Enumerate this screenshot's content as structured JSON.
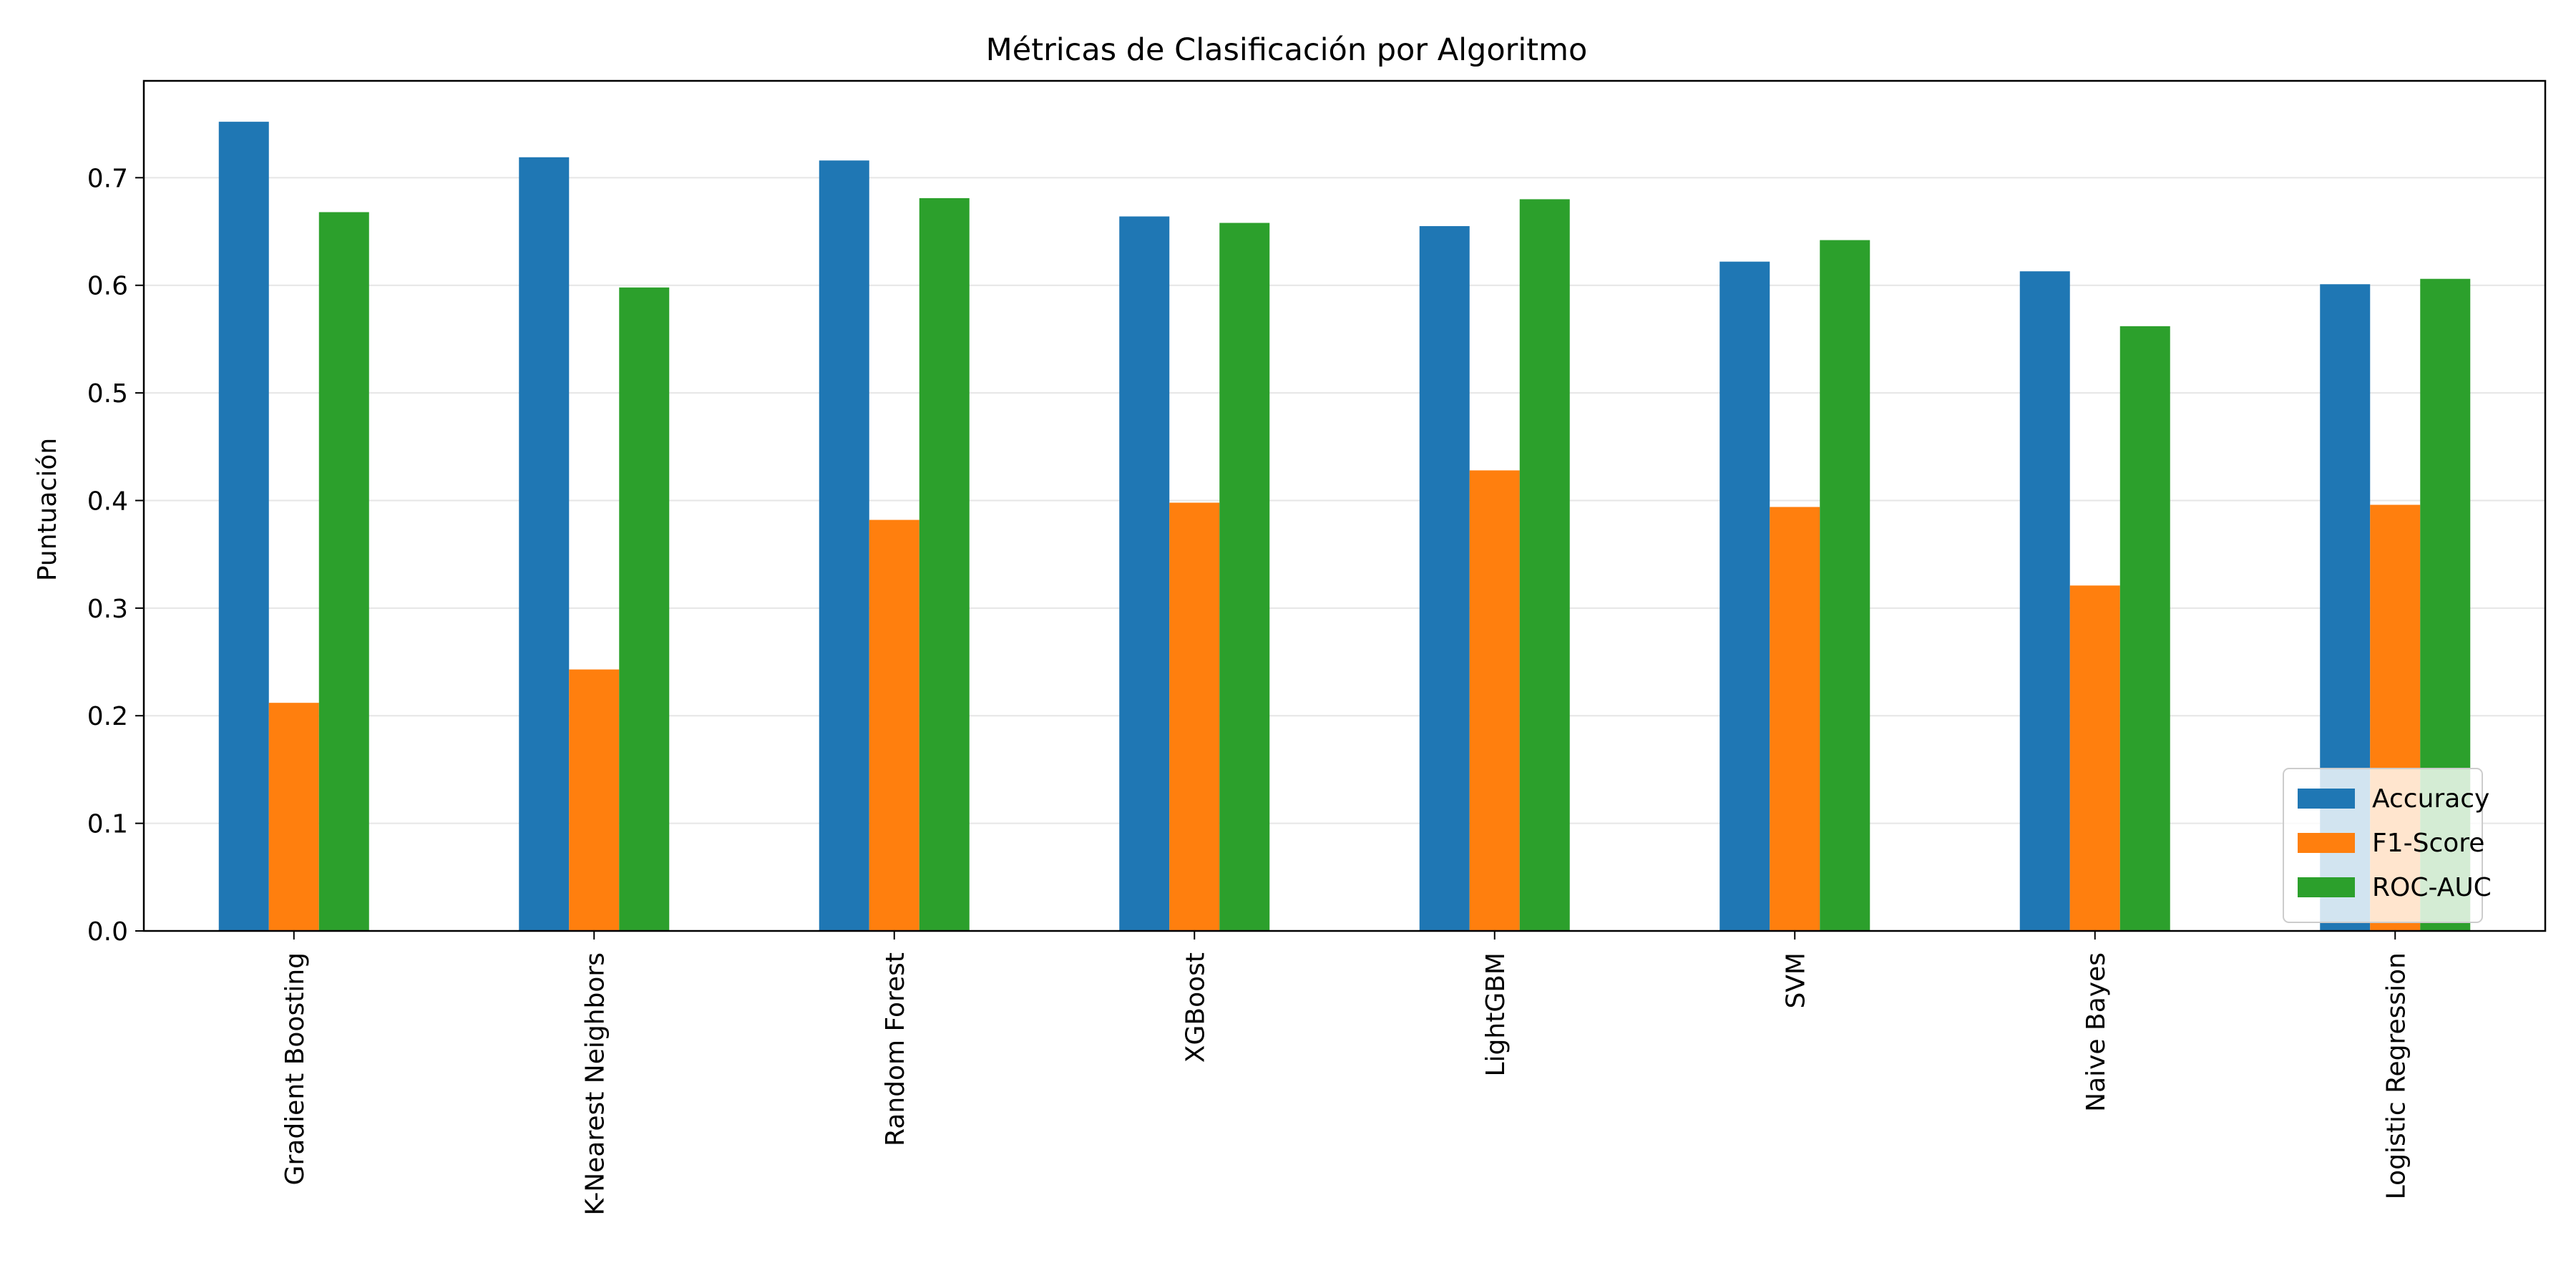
{
  "chart_data": {
    "type": "bar",
    "title": "Métricas de Clasificación por Algoritmo",
    "xlabel": "",
    "ylabel": "Puntuación",
    "ylim": [
      0,
      0.79
    ],
    "yticks": [
      "0.0",
      "0.1",
      "0.2",
      "0.3",
      "0.4",
      "0.5",
      "0.6",
      "0.7"
    ],
    "grid": "y",
    "legend_position": "lower-right",
    "categories": [
      "Gradient Boosting",
      "K-Nearest Neighbors",
      "Random Forest",
      "XGBoost",
      "LightGBM",
      "SVM",
      "Naive Bayes",
      "Logistic Regression"
    ],
    "series": [
      {
        "name": "Accuracy",
        "color": "#1f77b4",
        "values": [
          0.752,
          0.719,
          0.716,
          0.664,
          0.655,
          0.622,
          0.613,
          0.601
        ]
      },
      {
        "name": "F1-Score",
        "color": "#ff7f0e",
        "values": [
          0.212,
          0.243,
          0.382,
          0.398,
          0.428,
          0.394,
          0.321,
          0.396
        ]
      },
      {
        "name": "ROC-AUC",
        "color": "#2ca02c",
        "values": [
          0.668,
          0.598,
          0.681,
          0.658,
          0.68,
          0.642,
          0.562,
          0.606
        ]
      }
    ]
  }
}
